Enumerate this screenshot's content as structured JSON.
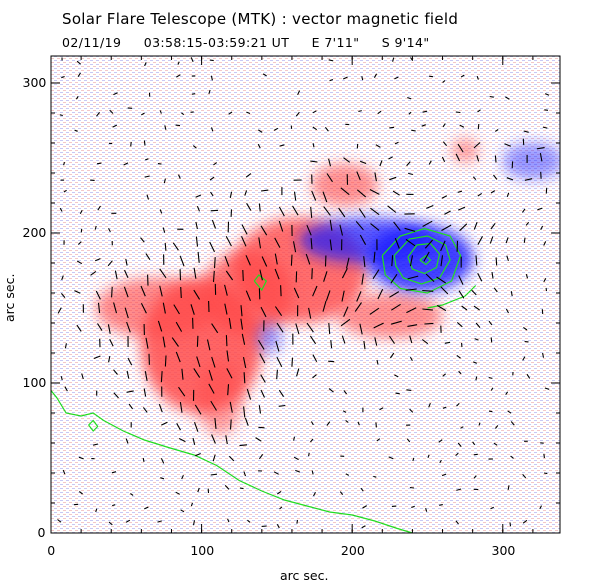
{
  "title": "Solar Flare Telescope (MTK) : vector magnetic field",
  "subtitle": {
    "date": "02/11/19",
    "time_range": "03:58:15-03:59:21 UT",
    "longitude": "E 7'11\"",
    "latitude": "S 9'14\""
  },
  "colors": {
    "positive_field": "#ff4a4a",
    "negative_field": "#1f1fff",
    "contour": "#22dd22",
    "vectors": "#000000",
    "frame": "#000000"
  },
  "chart_data": {
    "type": "heatmap",
    "title": "Solar Flare Telescope (MTK) : vector magnetic field",
    "xlabel": "arc sec.",
    "ylabel": "arc sec.",
    "xlim": [
      0,
      338
    ],
    "ylim": [
      0,
      318
    ],
    "xticks": [
      "0",
      "100",
      "200",
      "300"
    ],
    "yticks": [
      "0",
      "100",
      "200",
      "300"
    ],
    "xtick_values": [
      0,
      100,
      200,
      300
    ],
    "ytick_values": [
      0,
      100,
      200,
      300
    ],
    "regions": [
      {
        "polarity": "positive",
        "x": 100,
        "y": 125,
        "rx": 40,
        "ry": 45,
        "strength": 1.0
      },
      {
        "polarity": "positive",
        "x": 70,
        "y": 150,
        "rx": 40,
        "ry": 20,
        "strength": 0.75
      },
      {
        "polarity": "positive",
        "x": 165,
        "y": 175,
        "rx": 45,
        "ry": 35,
        "strength": 0.95
      },
      {
        "polarity": "positive",
        "x": 130,
        "y": 160,
        "rx": 30,
        "ry": 28,
        "strength": 0.85
      },
      {
        "polarity": "positive",
        "x": 195,
        "y": 232,
        "rx": 22,
        "ry": 14,
        "strength": 0.7
      },
      {
        "polarity": "positive",
        "x": 275,
        "y": 255,
        "rx": 9,
        "ry": 8,
        "strength": 0.6
      },
      {
        "polarity": "positive",
        "x": 225,
        "y": 145,
        "rx": 35,
        "ry": 15,
        "strength": 0.7
      },
      {
        "polarity": "positive",
        "x": 112,
        "y": 90,
        "rx": 15,
        "ry": 25,
        "strength": 0.6
      },
      {
        "polarity": "negative",
        "x": 245,
        "y": 183,
        "rx": 35,
        "ry": 22,
        "strength": 1.0
      },
      {
        "polarity": "negative",
        "x": 210,
        "y": 195,
        "rx": 45,
        "ry": 15,
        "strength": 0.85
      },
      {
        "polarity": "negative",
        "x": 320,
        "y": 248,
        "rx": 20,
        "ry": 12,
        "strength": 0.55
      },
      {
        "polarity": "negative",
        "x": 145,
        "y": 130,
        "rx": 8,
        "ry": 10,
        "strength": 0.5
      }
    ],
    "contours": [
      {
        "level": 1,
        "path": [
          [
            220,
            185
          ],
          [
            232,
            198
          ],
          [
            248,
            203
          ],
          [
            265,
            198
          ],
          [
            272,
            185
          ],
          [
            266,
            168
          ],
          [
            250,
            160
          ],
          [
            232,
            163
          ],
          [
            222,
            172
          ],
          [
            220,
            185
          ]
        ]
      },
      {
        "level": 2,
        "path": [
          [
            228,
            185
          ],
          [
            238,
            196
          ],
          [
            250,
            198
          ],
          [
            262,
            192
          ],
          [
            265,
            182
          ],
          [
            258,
            170
          ],
          [
            246,
            166
          ],
          [
            234,
            170
          ],
          [
            229,
            178
          ],
          [
            228,
            185
          ]
        ]
      },
      {
        "level": 3,
        "path": [
          [
            237,
            184
          ],
          [
            243,
            192
          ],
          [
            252,
            193
          ],
          [
            258,
            186
          ],
          [
            256,
            177
          ],
          [
            248,
            173
          ],
          [
            240,
            176
          ],
          [
            237,
            184
          ]
        ]
      },
      {
        "level": 4,
        "path": [
          [
            245,
            182
          ],
          [
            249,
            185
          ],
          [
            252,
            182
          ],
          [
            249,
            179
          ],
          [
            245,
            182
          ]
        ]
      },
      {
        "level": 1,
        "path": [
          [
            135,
            168
          ],
          [
            140,
            162
          ],
          [
            143,
            168
          ],
          [
            138,
            172
          ],
          [
            135,
            168
          ]
        ]
      },
      {
        "level": 1,
        "path": [
          [
            0,
            95
          ],
          [
            4,
            90
          ],
          [
            10,
            80
          ],
          [
            20,
            78
          ],
          [
            28,
            80
          ],
          [
            35,
            75
          ],
          [
            48,
            68
          ],
          [
            62,
            62
          ],
          [
            78,
            57
          ],
          [
            95,
            52
          ],
          [
            110,
            45
          ],
          [
            125,
            35
          ],
          [
            140,
            28
          ],
          [
            155,
            22
          ],
          [
            170,
            18
          ],
          [
            185,
            14
          ],
          [
            200,
            12
          ],
          [
            215,
            8
          ],
          [
            230,
            3
          ],
          [
            240,
            0
          ]
        ]
      },
      {
        "level": 1,
        "path": [
          [
            25,
            72
          ],
          [
            28,
            68
          ],
          [
            31,
            71
          ],
          [
            28,
            75
          ],
          [
            25,
            72
          ]
        ]
      },
      {
        "level": 1,
        "path": [
          [
            250,
            150
          ],
          [
            260,
            152
          ],
          [
            275,
            158
          ],
          [
            282,
            165
          ]
        ]
      }
    ]
  }
}
